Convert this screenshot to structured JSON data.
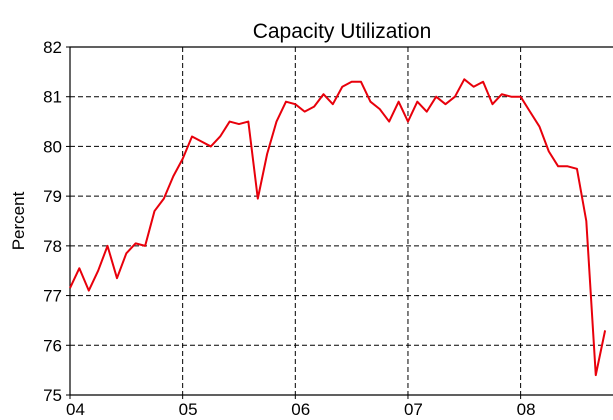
{
  "chart_data": {
    "type": "line",
    "title": "Capacity Utilization",
    "y_label": "Percent",
    "x": [
      2004.0,
      2004.083,
      2004.167,
      2004.25,
      2004.333,
      2004.417,
      2004.5,
      2004.583,
      2004.667,
      2004.75,
      2004.833,
      2004.917,
      2005.0,
      2005.083,
      2005.167,
      2005.25,
      2005.333,
      2005.417,
      2005.5,
      2005.583,
      2005.667,
      2005.75,
      2005.833,
      2005.917,
      2006.0,
      2006.083,
      2006.167,
      2006.25,
      2006.333,
      2006.417,
      2006.5,
      2006.583,
      2006.667,
      2006.75,
      2006.833,
      2006.917,
      2007.0,
      2007.083,
      2007.167,
      2007.25,
      2007.333,
      2007.417,
      2007.5,
      2007.583,
      2007.667,
      2007.75,
      2007.833,
      2007.917,
      2008.0,
      2008.083,
      2008.167,
      2008.25,
      2008.333,
      2008.417,
      2008.5,
      2008.583,
      2008.667,
      2008.75
    ],
    "series": [
      {
        "name": "Capacity Utilization",
        "color": "#e8000b",
        "values": [
          77.15,
          77.55,
          77.1,
          77.5,
          78.0,
          77.35,
          77.85,
          78.05,
          78.0,
          78.7,
          78.95,
          79.4,
          79.75,
          80.2,
          80.1,
          80.0,
          80.2,
          80.5,
          80.45,
          80.5,
          78.95,
          79.85,
          80.5,
          80.9,
          80.85,
          80.7,
          80.8,
          81.05,
          80.85,
          81.2,
          81.3,
          81.3,
          80.9,
          80.75,
          80.5,
          80.9,
          80.5,
          80.9,
          80.7,
          81.0,
          80.85,
          81.0,
          81.35,
          81.2,
          81.3,
          80.85,
          81.05,
          81.0,
          81.0,
          80.7,
          80.4,
          79.9,
          79.6,
          79.6,
          79.55,
          78.5,
          75.4,
          76.3
        ]
      }
    ],
    "xlim": [
      2004,
      2008.82
    ],
    "xticks": [
      {
        "value": 2004,
        "label": "04"
      },
      {
        "value": 2005,
        "label": "05"
      },
      {
        "value": 2006,
        "label": "06"
      },
      {
        "value": 2007,
        "label": "07"
      },
      {
        "value": 2008,
        "label": "08"
      }
    ],
    "ylim": [
      75,
      82
    ],
    "yticks": [
      75,
      76,
      77,
      78,
      79,
      80,
      81,
      82
    ],
    "grid": true
  }
}
